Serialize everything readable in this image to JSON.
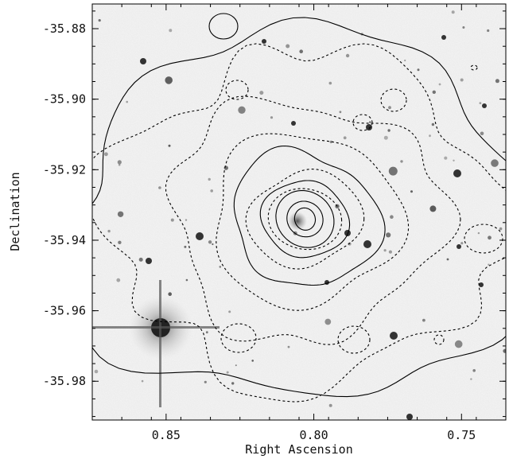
{
  "figure": {
    "xlabel": "Right Ascension",
    "ylabel": "Declination"
  },
  "chart_data": {
    "type": "scatter",
    "title": "",
    "xlabel": "Right Ascension",
    "ylabel": "Declination",
    "xlim": [
      0.875,
      0.735
    ],
    "ylim": [
      -35.991,
      -35.873
    ],
    "x_ticks": [
      0.85,
      0.8,
      0.75
    ],
    "x_tick_labels": [
      "0.85",
      "0.80",
      "0.75"
    ],
    "y_ticks": [
      -35.88,
      -35.9,
      -35.92,
      -35.94,
      -35.96,
      -35.98
    ],
    "y_tick_labels": [
      "-35.88",
      "-35.90",
      "-35.92",
      "-35.94",
      "-35.96",
      "-35.98"
    ],
    "grid": false,
    "background": "grayscale optical image with overlaid X-ray (solid) and radio (dashed) contours",
    "contour_center": {
      "ra": 0.803,
      "dec": -35.934
    },
    "colors": {
      "contour": "#000000",
      "background": "#eeeeee"
    }
  }
}
